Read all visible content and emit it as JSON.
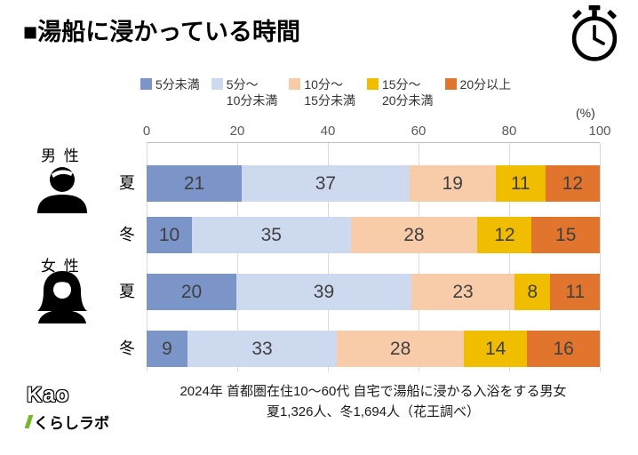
{
  "chart_data": {
    "type": "bar",
    "orientation": "horizontal",
    "stacked": true,
    "title": "■湯船に浸かっている時間",
    "unit": "(%)",
    "xlim": [
      0,
      100
    ],
    "x_ticks": [
      0,
      20,
      40,
      60,
      80,
      100
    ],
    "grid": true,
    "legend_position": "top",
    "colors": [
      "#7b95c9",
      "#cdd9ee",
      "#f8cba9",
      "#f0bd00",
      "#e2752e"
    ],
    "series": [
      "5分未満",
      "5分～10分未満",
      "10分～15分未満",
      "15分～20分未満",
      "20分以上"
    ],
    "groups": [
      {
        "name": "男 性",
        "rows": [
          {
            "label": "夏",
            "values": [
              21,
              37,
              19,
              11,
              12
            ]
          },
          {
            "label": "冬",
            "values": [
              10,
              35,
              28,
              12,
              15
            ]
          }
        ]
      },
      {
        "name": "女 性",
        "rows": [
          {
            "label": "夏",
            "values": [
              20,
              39,
              23,
              8,
              11
            ]
          },
          {
            "label": "冬",
            "values": [
              9,
              33,
              28,
              14,
              16
            ]
          }
        ]
      }
    ]
  },
  "legend": {
    "items": [
      {
        "lines": [
          "5分未満"
        ]
      },
      {
        "lines": [
          "5分～",
          "10分未満"
        ]
      },
      {
        "lines": [
          "10分～",
          "15分未満"
        ]
      },
      {
        "lines": [
          "15分～",
          "20分未満"
        ]
      },
      {
        "lines": [
          "20分以上"
        ]
      }
    ]
  },
  "footer": {
    "line1": "2024年  首都圏在住10～60代 自宅で湯船に浸かる入浴をする男女",
    "line2": "夏1,326人、冬1,694人（花王調べ）"
  },
  "logo": {
    "brand": "Kao",
    "lab": "くらしラボ"
  },
  "icons": {
    "stopwatch": "stopwatch-icon",
    "male": "male-person-icon",
    "female": "female-person-icon"
  }
}
